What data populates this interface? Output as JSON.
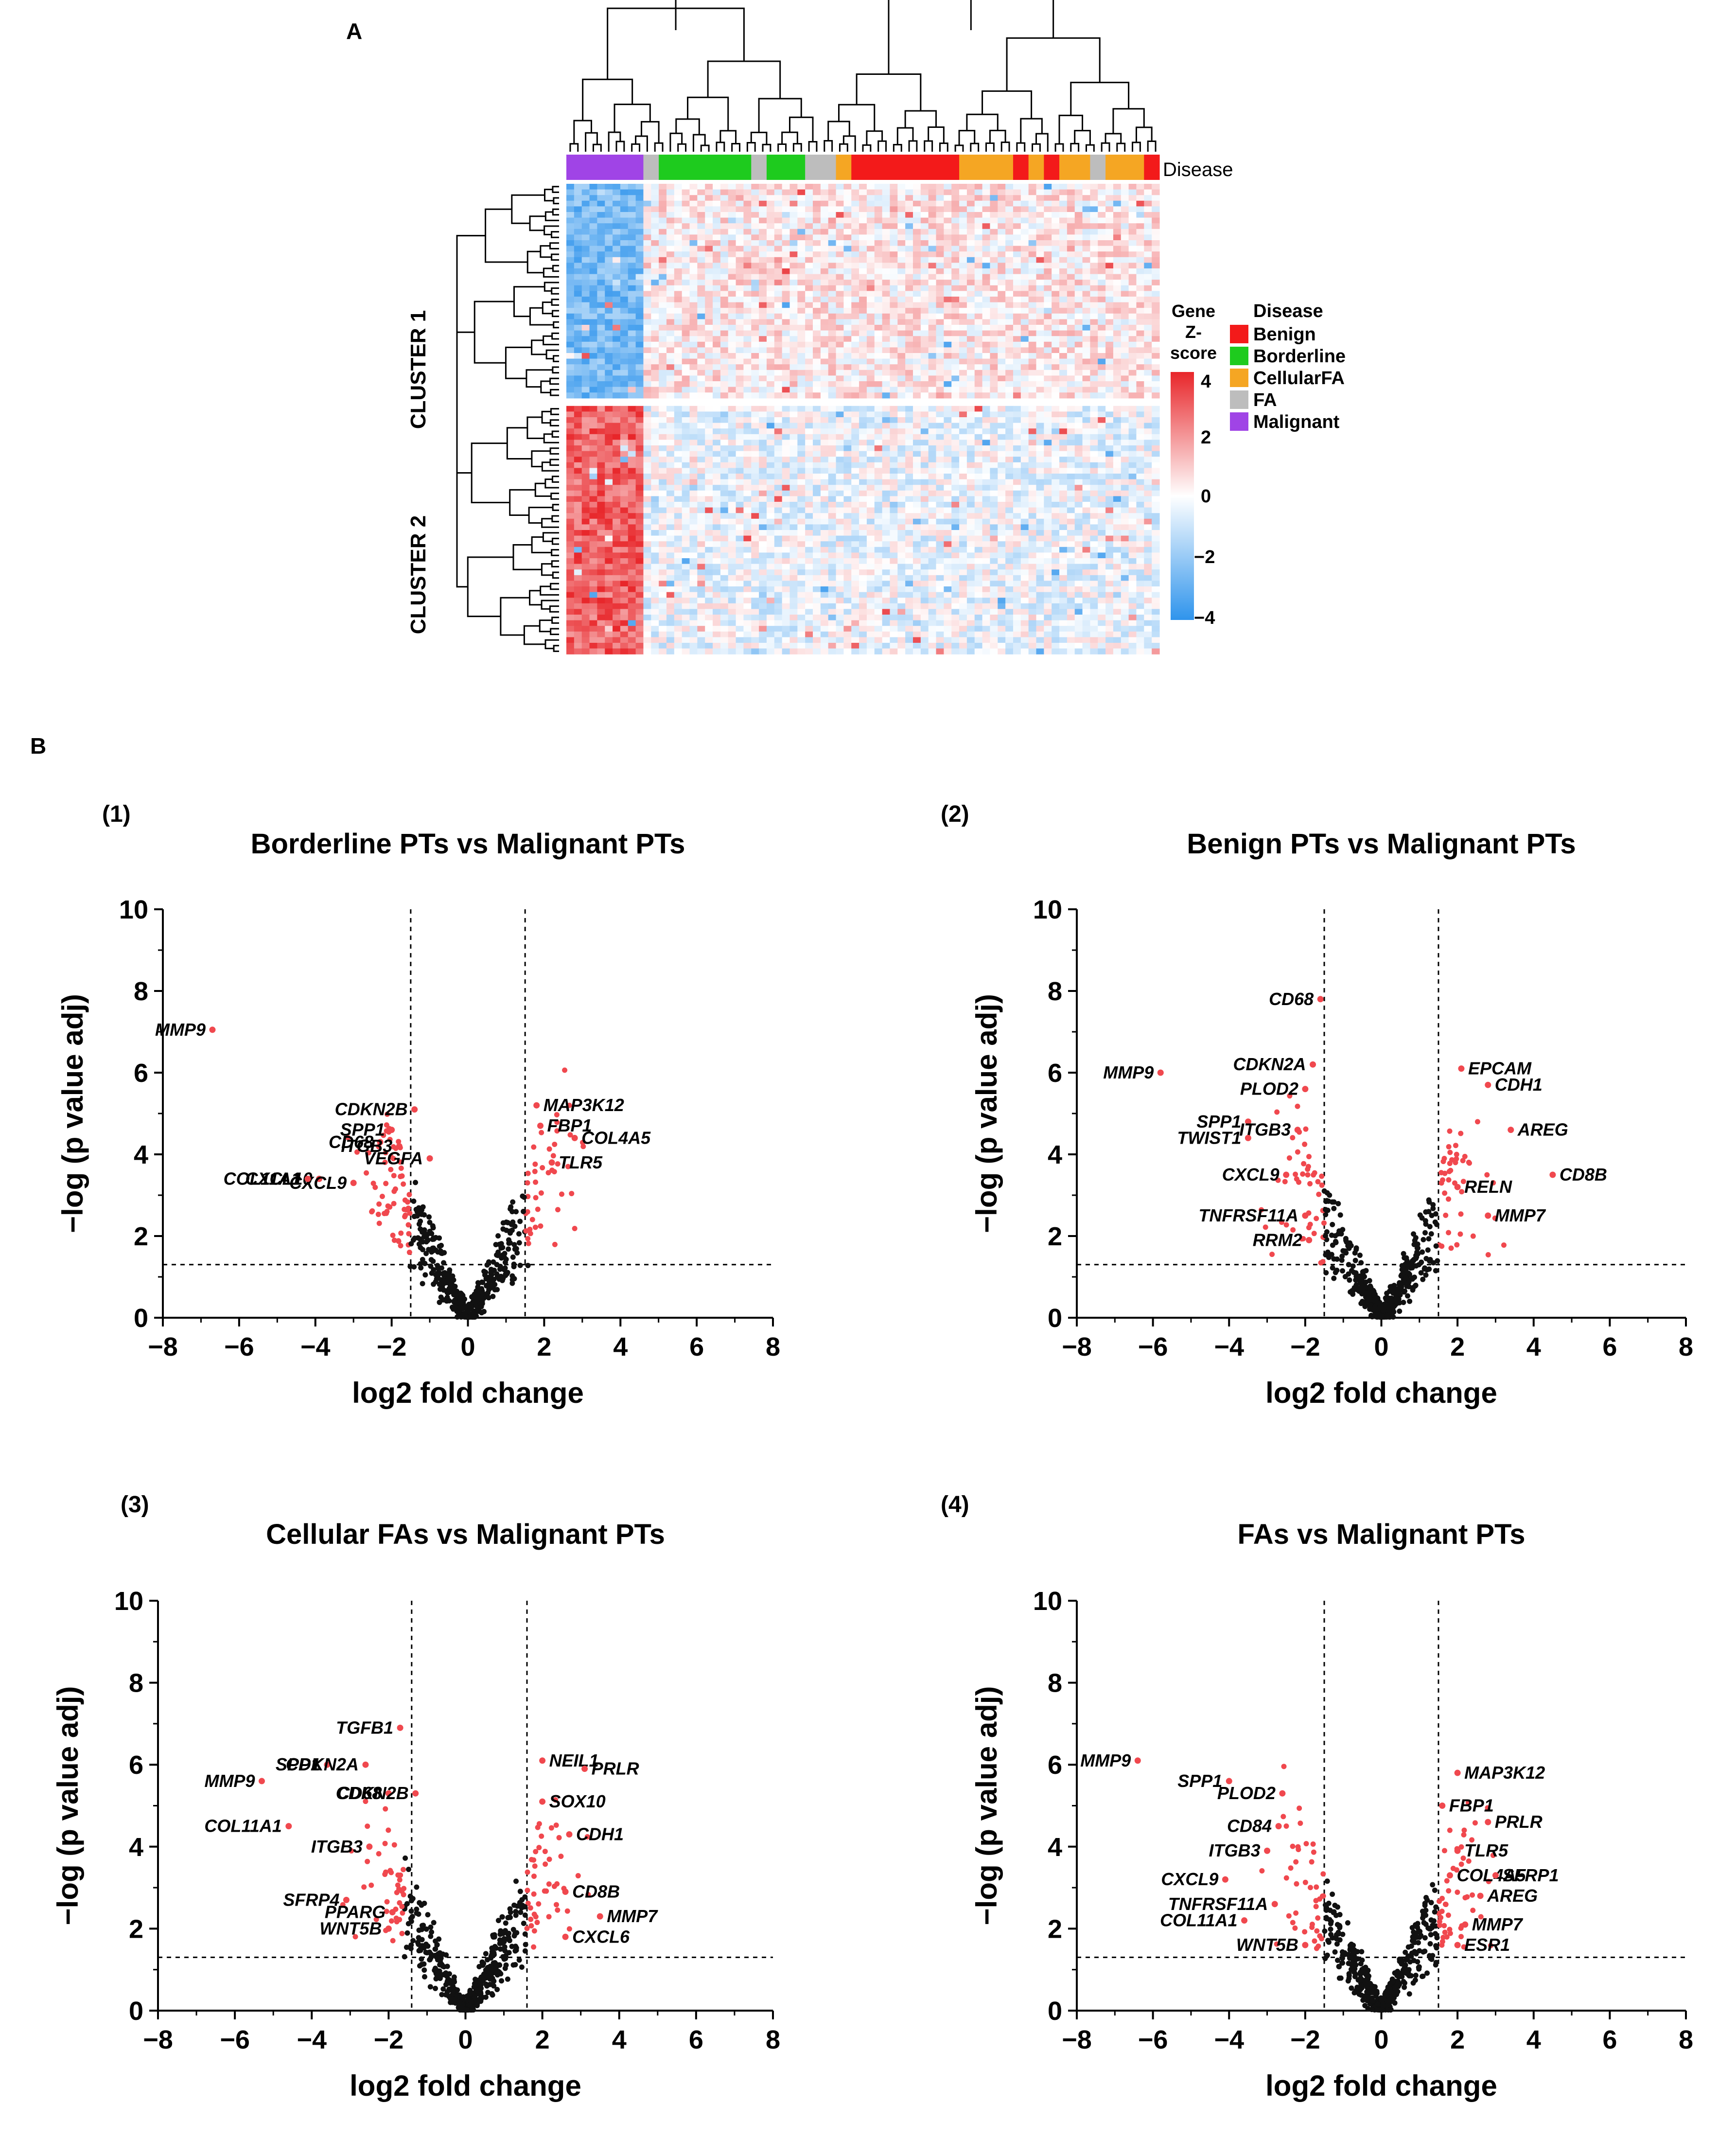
{
  "panel_a": {
    "label": "A",
    "cluster_labels": [
      "CLUSTER 1",
      "CLUSTER 2"
    ],
    "annotation_track_label": "Disease",
    "colorbar": {
      "title_lines": [
        "Gene",
        "Z-",
        "score"
      ],
      "ticks": [
        "4",
        "2",
        "0",
        "−2",
        "−4"
      ],
      "colors": {
        "high": "#e8262a",
        "mid": "#ffffff",
        "low": "#2f94ec"
      }
    },
    "legend": {
      "title": "Disease",
      "items": [
        {
          "label": "Benign",
          "color": "#f31a1a"
        },
        {
          "label": "Borderline",
          "color": "#1ecb1e"
        },
        {
          "label": "CellularFA",
          "color": "#f5a623"
        },
        {
          "label": "FA",
          "color": "#bdbdbd"
        },
        {
          "label": "Malignant",
          "color": "#a044e6"
        }
      ]
    },
    "sample_groups": [
      "Malignant",
      "Malignant",
      "Malignant",
      "Malignant",
      "Malignant",
      "Malignant",
      "Malignant",
      "Malignant",
      "Malignant",
      "Malignant",
      "FA",
      "FA",
      "Borderline",
      "Borderline",
      "Borderline",
      "Borderline",
      "Borderline",
      "Borderline",
      "Borderline",
      "Borderline",
      "Borderline",
      "Borderline",
      "Borderline",
      "Borderline",
      "FA",
      "FA",
      "Borderline",
      "Borderline",
      "Borderline",
      "Borderline",
      "Borderline",
      "FA",
      "FA",
      "FA",
      "FA",
      "CellularFA",
      "CellularFA",
      "Benign",
      "Benign",
      "Benign",
      "Benign",
      "Benign",
      "Benign",
      "Benign",
      "Benign",
      "Benign",
      "Benign",
      "Benign",
      "Benign",
      "Benign",
      "Benign",
      "CellularFA",
      "CellularFA",
      "CellularFA",
      "CellularFA",
      "CellularFA",
      "CellularFA",
      "CellularFA",
      "Benign",
      "Benign",
      "CellularFA",
      "CellularFA",
      "Benign",
      "Benign",
      "CellularFA",
      "CellularFA",
      "CellularFA",
      "CellularFA",
      "FA",
      "FA",
      "CellularFA",
      "CellularFA",
      "CellularFA",
      "CellularFA",
      "CellularFA",
      "Benign",
      "Benign"
    ],
    "cluster1_rows": 38,
    "cluster2_rows": 44
  },
  "panel_b": {
    "label": "B",
    "x_ticks": [
      "−8",
      "−6",
      "−4",
      "−2",
      "0",
      "2",
      "4",
      "6",
      "8"
    ],
    "y_ticks": [
      "0",
      "2",
      "4",
      "6",
      "8",
      "10"
    ],
    "colors": {
      "significant": "#f0484e",
      "nonsignificant": "#111111",
      "highlight": "#f5a623"
    }
  },
  "chart_data": [
    {
      "type": "scatter",
      "panel_number": "(1)",
      "title": "Borderline PTs vs Malignant PTs",
      "xlabel": "log2 fold change",
      "ylabel": "−log (p value adj)",
      "xlim": [
        -8,
        8
      ],
      "ylim": [
        0,
        10
      ],
      "thresholds": {
        "x": [
          -1.5,
          1.5
        ],
        "y": 1.3
      },
      "labeled_points": [
        {
          "gene": "MMP9",
          "x": -6.7,
          "y": 7.05
        },
        {
          "gene": "CD68",
          "x": -2.3,
          "y": 4.3
        },
        {
          "gene": "SPP1",
          "x": -2.0,
          "y": 4.6
        },
        {
          "gene": "ITGB3",
          "x": -1.8,
          "y": 4.2
        },
        {
          "gene": "CXCL10",
          "x": -3.9,
          "y": 3.4
        },
        {
          "gene": "CXCL9",
          "x": -3.0,
          "y": 3.3
        },
        {
          "gene": "COL11A1",
          "x": -4.2,
          "y": 3.4
        },
        {
          "gene": "CDKN2B",
          "x": -1.4,
          "y": 5.1
        },
        {
          "gene": "VEGFA",
          "x": -1.0,
          "y": 3.9
        },
        {
          "gene": "MAP3K12",
          "x": 1.8,
          "y": 5.2
        },
        {
          "gene": "FBP1",
          "x": 1.9,
          "y": 4.7
        },
        {
          "gene": "COL4A5",
          "x": 2.8,
          "y": 4.4
        },
        {
          "gene": "TLR5",
          "x": 2.2,
          "y": 3.8
        }
      ]
    },
    {
      "type": "scatter",
      "panel_number": "(2)",
      "title": "Benign PTs vs Malignant PTs",
      "xlabel": "log2 fold change",
      "ylabel": "−log (p value adj)",
      "xlim": [
        -8,
        8
      ],
      "ylim": [
        0,
        10
      ],
      "thresholds": {
        "x": [
          -1.5,
          1.5
        ],
        "y": 1.3
      },
      "labeled_points": [
        {
          "gene": "CD68",
          "x": -1.6,
          "y": 7.8
        },
        {
          "gene": "CDKN2A",
          "x": -1.8,
          "y": 6.2
        },
        {
          "gene": "MMP9",
          "x": -5.8,
          "y": 6.0
        },
        {
          "gene": "PLOD2",
          "x": -2.0,
          "y": 5.6
        },
        {
          "gene": "SPP1",
          "x": -3.5,
          "y": 4.8
        },
        {
          "gene": "ITGB3",
          "x": -2.2,
          "y": 4.6
        },
        {
          "gene": "TWIST1",
          "x": -3.5,
          "y": 4.4
        },
        {
          "gene": "CXCL9",
          "x": -2.5,
          "y": 3.5
        },
        {
          "gene": "TNFRSF11A",
          "x": -2.0,
          "y": 2.5
        },
        {
          "gene": "RRM2",
          "x": -1.9,
          "y": 1.9
        },
        {
          "gene": "EPCAM",
          "x": 2.1,
          "y": 6.1
        },
        {
          "gene": "CDH1",
          "x": 2.8,
          "y": 5.7
        },
        {
          "gene": "AREG",
          "x": 3.4,
          "y": 4.6
        },
        {
          "gene": "CD8B",
          "x": 4.5,
          "y": 3.5
        },
        {
          "gene": "RELN",
          "x": 2.0,
          "y": 3.2
        },
        {
          "gene": "MMP7",
          "x": 2.8,
          "y": 2.5
        }
      ]
    },
    {
      "type": "scatter",
      "panel_number": "(3)",
      "title": "Cellular FAs vs Malignant PTs",
      "xlabel": "log2 fold change",
      "ylabel": "−log (p value adj)",
      "xlim": [
        -8,
        8
      ],
      "ylim": [
        0,
        10
      ],
      "thresholds": {
        "x": [
          -1.4,
          1.6
        ],
        "y": 1.3
      },
      "labeled_points": [
        {
          "gene": "TGFB1",
          "x": -1.7,
          "y": 6.9
        },
        {
          "gene": "SPP1",
          "x": -3.6,
          "y": 6.0
        },
        {
          "gene": "CDKN2A",
          "x": -2.6,
          "y": 6.0
        },
        {
          "gene": "MMP9",
          "x": -5.3,
          "y": 5.6
        },
        {
          "gene": "CD68",
          "x": -2.0,
          "y": 5.3
        },
        {
          "gene": "CDKN2B",
          "x": -1.3,
          "y": 5.3
        },
        {
          "gene": "COL11A1",
          "x": -4.6,
          "y": 4.5
        },
        {
          "gene": "ITGB3",
          "x": -2.5,
          "y": 4.0
        },
        {
          "gene": "SFRP4",
          "x": -3.1,
          "y": 2.7
        },
        {
          "gene": "PPARG",
          "x": -1.9,
          "y": 2.4
        },
        {
          "gene": "WNT5B",
          "x": -2.0,
          "y": 2.0
        },
        {
          "gene": "NEIL1",
          "x": 2.0,
          "y": 6.1
        },
        {
          "gene": "PRLR",
          "x": 3.1,
          "y": 5.9
        },
        {
          "gene": "SOX10",
          "x": 2.0,
          "y": 5.1
        },
        {
          "gene": "CDH1",
          "x": 2.7,
          "y": 4.3
        },
        {
          "gene": "CD8B",
          "x": 2.6,
          "y": 2.9
        },
        {
          "gene": "MMP7",
          "x": 3.5,
          "y": 2.3
        },
        {
          "gene": "CXCL6",
          "x": 2.6,
          "y": 1.8
        }
      ]
    },
    {
      "type": "scatter",
      "panel_number": "(4)",
      "title": "FAs vs Malignant PTs",
      "xlabel": "log2 fold change",
      "ylabel": "−log (p value adj)",
      "xlim": [
        -8,
        8
      ],
      "ylim": [
        0,
        10
      ],
      "thresholds": {
        "x": [
          -1.5,
          1.5
        ],
        "y": 1.3
      },
      "labeled_points": [
        {
          "gene": "MMP9",
          "x": -6.4,
          "y": 6.1
        },
        {
          "gene": "SPP1",
          "x": -4.0,
          "y": 5.6
        },
        {
          "gene": "PLOD2",
          "x": -2.6,
          "y": 5.3
        },
        {
          "gene": "CD84",
          "x": -2.7,
          "y": 4.5
        },
        {
          "gene": "ITGB3",
          "x": -3.0,
          "y": 3.9
        },
        {
          "gene": "CXCL9",
          "x": -4.1,
          "y": 3.2
        },
        {
          "gene": "TNFRSF11A",
          "x": -2.8,
          "y": 2.6
        },
        {
          "gene": "COL11A1",
          "x": -3.6,
          "y": 2.2
        },
        {
          "gene": "WNT5B",
          "x": -2.0,
          "y": 1.6
        },
        {
          "gene": "MAP3K12",
          "x": 2.0,
          "y": 5.8
        },
        {
          "gene": "FBP1",
          "x": 1.6,
          "y": 5.0
        },
        {
          "gene": "PRLR",
          "x": 2.8,
          "y": 4.6
        },
        {
          "gene": "TLR5",
          "x": 2.0,
          "y": 3.9
        },
        {
          "gene": "COL4A5",
          "x": 1.8,
          "y": 3.3
        },
        {
          "gene": "SFRP1",
          "x": 3.0,
          "y": 3.3
        },
        {
          "gene": "AREG",
          "x": 2.6,
          "y": 2.8
        },
        {
          "gene": "MMP7",
          "x": 2.2,
          "y": 2.1
        },
        {
          "gene": "ESR1",
          "x": 2.0,
          "y": 1.6
        }
      ]
    }
  ]
}
